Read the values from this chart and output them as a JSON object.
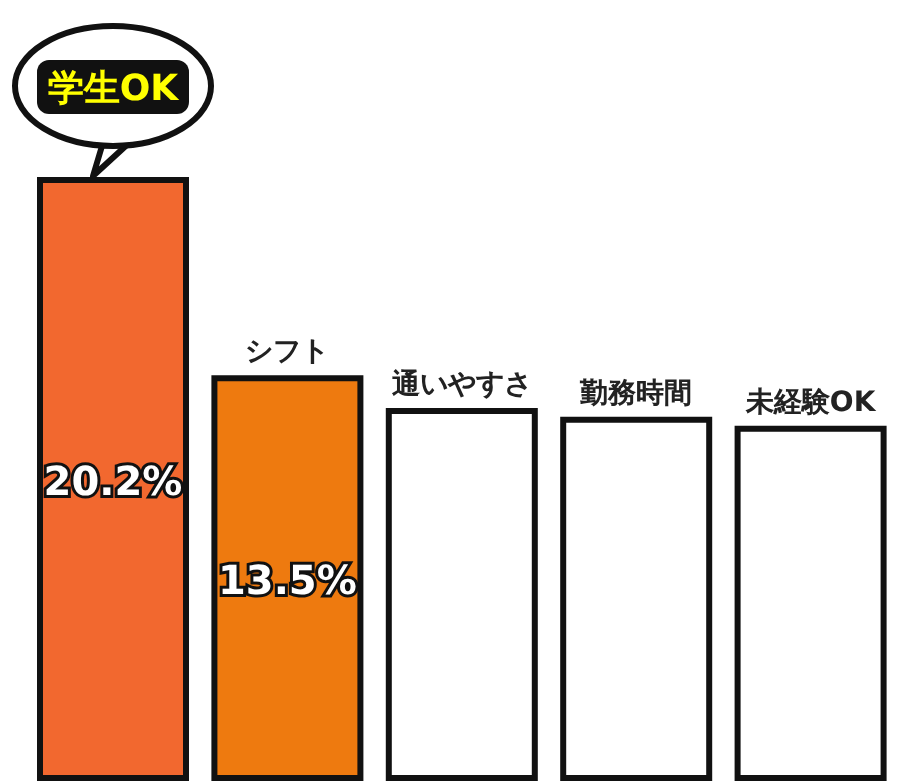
{
  "chart_data": {
    "type": "bar",
    "categories": [
      "学生OK",
      "シフト",
      "通いやすさ",
      "勤務時間",
      "未経験OK"
    ],
    "values": [
      20.2,
      13.5,
      12.4,
      12.1,
      11.8
    ],
    "colors": [
      "#f2682f",
      "#ee7a0f",
      "#ffffff",
      "#ffffff",
      "#ffffff"
    ],
    "value_labels": [
      "20.2%",
      "13.5%",
      null,
      null,
      null
    ],
    "grid": false,
    "legend": false,
    "tick_labels": false
  }
}
